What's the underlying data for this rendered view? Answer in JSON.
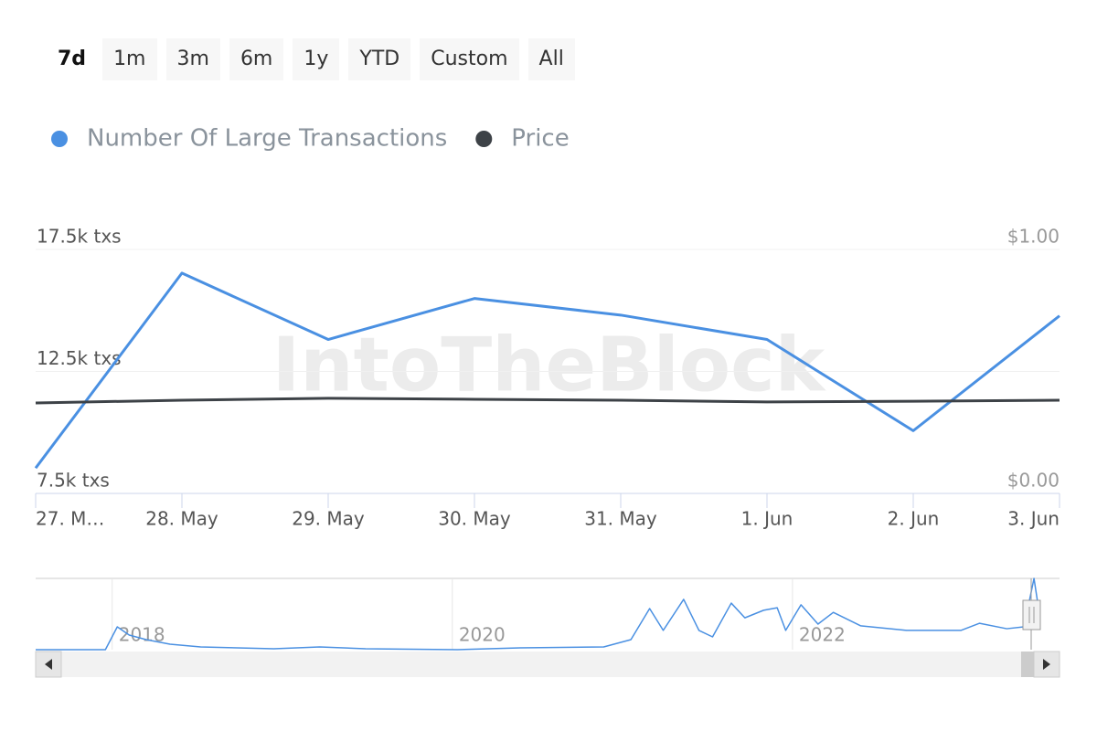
{
  "range_buttons": [
    {
      "label": "7d",
      "selected": true
    },
    {
      "label": "1m"
    },
    {
      "label": "3m"
    },
    {
      "label": "6m"
    },
    {
      "label": "1y"
    },
    {
      "label": "YTD"
    },
    {
      "label": "Custom"
    },
    {
      "label": "All"
    }
  ],
  "watermark": "IntoTheBlock",
  "chart_data": [
    {
      "type": "line",
      "categories": [
        "27. M…",
        "28. May",
        "29. May",
        "30. May",
        "31. May",
        "1. Jun",
        "2. Jun",
        "3. Jun"
      ],
      "series": [
        {
          "name": "Number Of Large Transactions",
          "color": "#4a90e2",
          "values": [
            8540,
            16530,
            13810,
            15490,
            14810,
            13810,
            10070,
            14780
          ]
        },
        {
          "name": "Price",
          "color": "#3d4247",
          "axis": "y2",
          "values": [
            0.371,
            0.382,
            0.39,
            0.386,
            0.382,
            0.375,
            0.378,
            0.382
          ]
        }
      ],
      "ylim": [
        7500,
        17500
      ],
      "yticks": [
        {
          "value": 7500,
          "label": "7.5k txs"
        },
        {
          "value": 12500,
          "label": "12.5k txs"
        },
        {
          "value": 17500,
          "label": "17.5k txs"
        }
      ],
      "y2lim": [
        0,
        1
      ],
      "y2ticks": [
        {
          "value": 0,
          "label": "$0.00"
        },
        {
          "value": 1,
          "label": "$1.00"
        }
      ],
      "grid": true
    },
    {
      "type": "line",
      "x": [
        2017.55,
        2017.96,
        2018.03,
        2018.1,
        2018.2,
        2018.34,
        2018.52,
        2018.95,
        2019.22,
        2019.49,
        2020.03,
        2020.4,
        2020.89,
        2021.05,
        2021.16,
        2021.24,
        2021.36,
        2021.45,
        2021.53,
        2021.64,
        2021.72,
        2021.83,
        2021.91,
        2021.96,
        2022.05,
        2022.15,
        2022.24,
        2022.4,
        2022.67,
        2022.99,
        2023.1,
        2023.26,
        2023.36,
        2023.39,
        2023.42,
        2023.45
      ],
      "series": [
        {
          "name": "Number Of Large Transactions",
          "color": "#4a90e2",
          "values": [
            0,
            0,
            5450,
            3490,
            2400,
            1300,
            650,
            220,
            650,
            220,
            0,
            440,
            650,
            2400,
            9800,
            4600,
            12000,
            4600,
            3050,
            11100,
            7600,
            9400,
            10000,
            4600,
            10700,
            6100,
            8900,
            5700,
            4600,
            4600,
            6300,
            5000,
            5450,
            11100,
            17000,
            9000
          ]
        }
      ],
      "xlim": [
        2017.55,
        2023.57
      ],
      "xticks": [
        2018,
        2020,
        2022
      ],
      "ylim": [
        0,
        17000
      ]
    }
  ]
}
